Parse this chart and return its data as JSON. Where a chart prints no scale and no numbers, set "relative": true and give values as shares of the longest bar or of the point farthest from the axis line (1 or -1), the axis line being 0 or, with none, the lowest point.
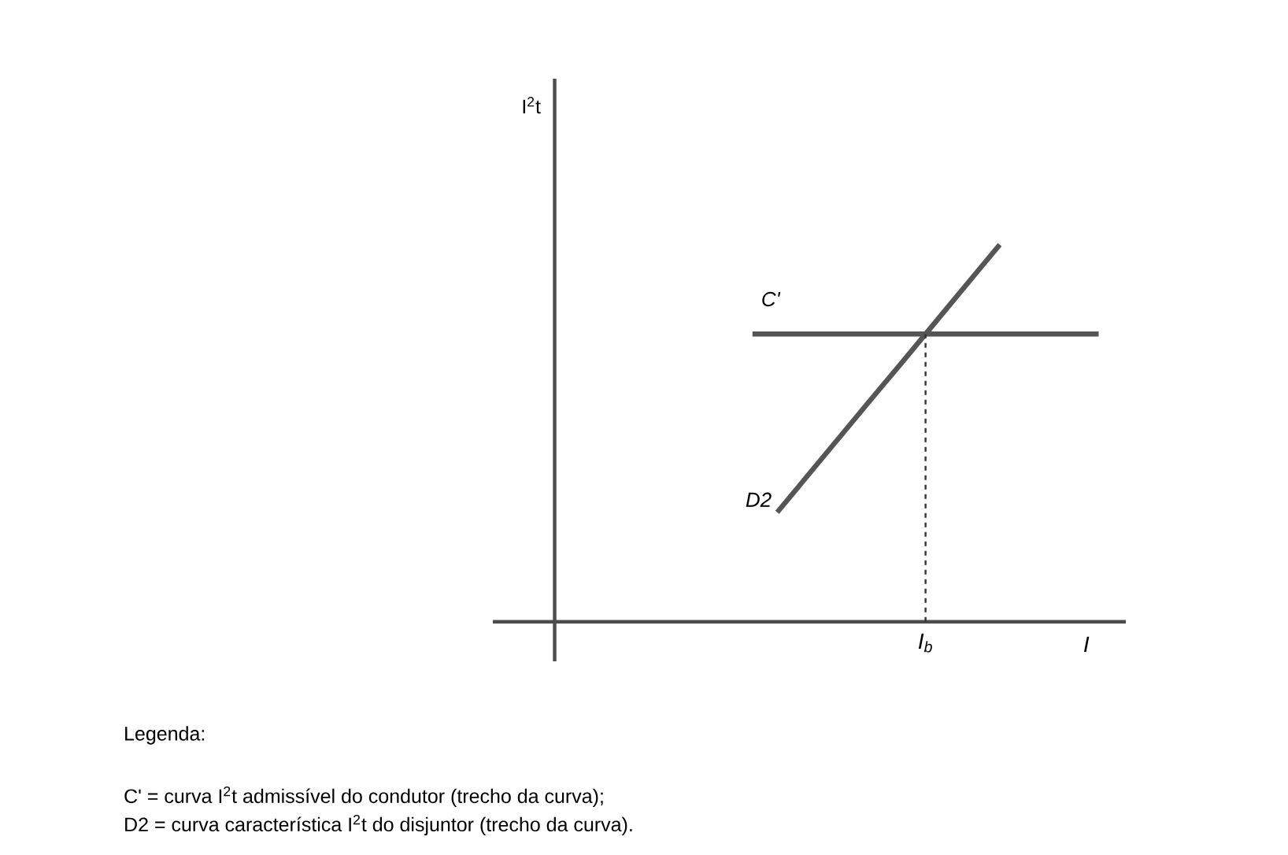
{
  "chart_data": {
    "type": "line",
    "relative": true,
    "xlabel": "I",
    "legend": false,
    "line_style": "solid",
    "marker": "none",
    "categories": [
      null,
      null,
      null,
      null,
      null,
      null,
      null,
      null,
      null,
      null,
      null,
      null,
      null,
      null,
      null,
      null,
      null,
      null,
      null,
      null,
      null,
      null,
      null
    ],
    "series": [
      {
        "name": "C'",
        "color": "#555555",
        "values": [
          null,
          null,
          null,
          null,
          null,
          null,
          null,
          null,
          0.763,
          0.763,
          0.763,
          0.763,
          0.763,
          0.763,
          0.763,
          0.763,
          0.763,
          0.763,
          0.763,
          0.763,
          0.763,
          0.763,
          0.763
        ]
      },
      {
        "name": "D2",
        "color": "#555555",
        "values": [
          null,
          null,
          null,
          null,
          null,
          null,
          null,
          null,
          null,
          0.29,
          0.369,
          0.448,
          0.527,
          0.606,
          0.684,
          0.763,
          0.842,
          0.921,
          1.0,
          null,
          null,
          null,
          null
        ]
      }
    ],
    "annotations": [
      "I$_{b}$",
      "I$^{2}$t",
      "Legenda:",
      "C' = curva I$^{2}$t admissível do condutor (trecho da curva);",
      "D2 = curva característica I$^{2}$t do disjuntor (trecho da curva)."
    ]
  }
}
